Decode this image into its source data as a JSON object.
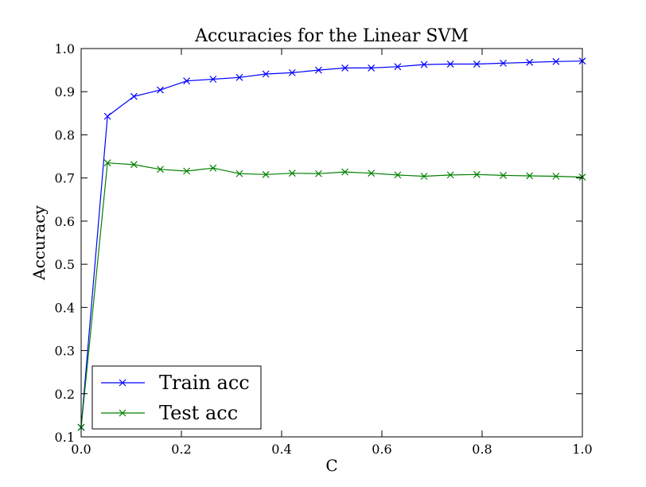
{
  "chart_data": {
    "type": "line",
    "title": "Accuracies for the Linear SVM",
    "xlabel": "C",
    "ylabel": "Accuracy",
    "xlim": [
      0.0,
      1.0
    ],
    "ylim": [
      0.1,
      1.0
    ],
    "xticks": [
      "0.0",
      "0.2",
      "0.4",
      "0.6",
      "0.8",
      "1.0"
    ],
    "yticks": [
      "0.1",
      "0.2",
      "0.3",
      "0.4",
      "0.5",
      "0.6",
      "0.7",
      "0.8",
      "0.9",
      "1.0"
    ],
    "grid": false,
    "legend_position": "lower-left",
    "x": [
      0.0,
      0.0526,
      0.1053,
      0.1579,
      0.2105,
      0.2632,
      0.3158,
      0.3684,
      0.4211,
      0.4737,
      0.5263,
      0.5789,
      0.6316,
      0.6842,
      0.7368,
      0.7895,
      0.8421,
      0.8947,
      0.9474,
      1.0
    ],
    "series": [
      {
        "name": "Train acc",
        "color": "#0000ff",
        "marker": "x",
        "values": [
          0.122,
          0.843,
          0.889,
          0.904,
          0.925,
          0.929,
          0.933,
          0.941,
          0.944,
          0.95,
          0.955,
          0.955,
          0.958,
          0.963,
          0.964,
          0.964,
          0.966,
          0.968,
          0.97,
          0.971
        ]
      },
      {
        "name": "Test acc",
        "color": "#008000",
        "marker": "x",
        "values": [
          0.122,
          0.735,
          0.731,
          0.72,
          0.716,
          0.723,
          0.71,
          0.708,
          0.711,
          0.71,
          0.714,
          0.711,
          0.707,
          0.704,
          0.707,
          0.708,
          0.706,
          0.705,
          0.704,
          0.702
        ]
      }
    ]
  }
}
